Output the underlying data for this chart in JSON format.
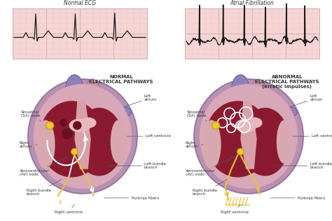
{
  "bg_color": "#ffffff",
  "ecg_bg": "#f5d5d5",
  "ecg_grid_minor": "#e8bfbf",
  "ecg_grid_major": "#d8a8a8",
  "title_left": "Normal ECG",
  "title_right": "Atrial Fibrillation",
  "label_normal": "NORMAL\nELECTRICAL PATHWAYS",
  "label_abnormal": "ABNORMAL\nELECTRICAL PATHWAYS\n(erratic impulses)",
  "text_color": "#333333",
  "heart_outer_color": "#c8a0b8",
  "heart_muscle_color": "#b87898",
  "heart_dark_chamber": "#7a1530",
  "heart_medium": "#9b2040",
  "heart_pink_wall": "#e8b0b8",
  "heart_purple": "#8878a8",
  "sa_node_color": "#f0c830",
  "av_node_color": "#f0c830",
  "purkinje_color": "#e8c040",
  "pathway_white": "#ffffff",
  "label_sa": "Sinoatrial\n(SA) node",
  "label_ra": "Right\natrium",
  "label_av": "Atrioventricular\n(AV) node",
  "label_rbb": "Right bundle\nbranch",
  "label_rv": "Right ventricle",
  "label_la": "Left\natrium",
  "label_lv": "Left ventricle",
  "label_lbb": "Left bundle\nbranch",
  "label_pk": "Purkinje fibers"
}
